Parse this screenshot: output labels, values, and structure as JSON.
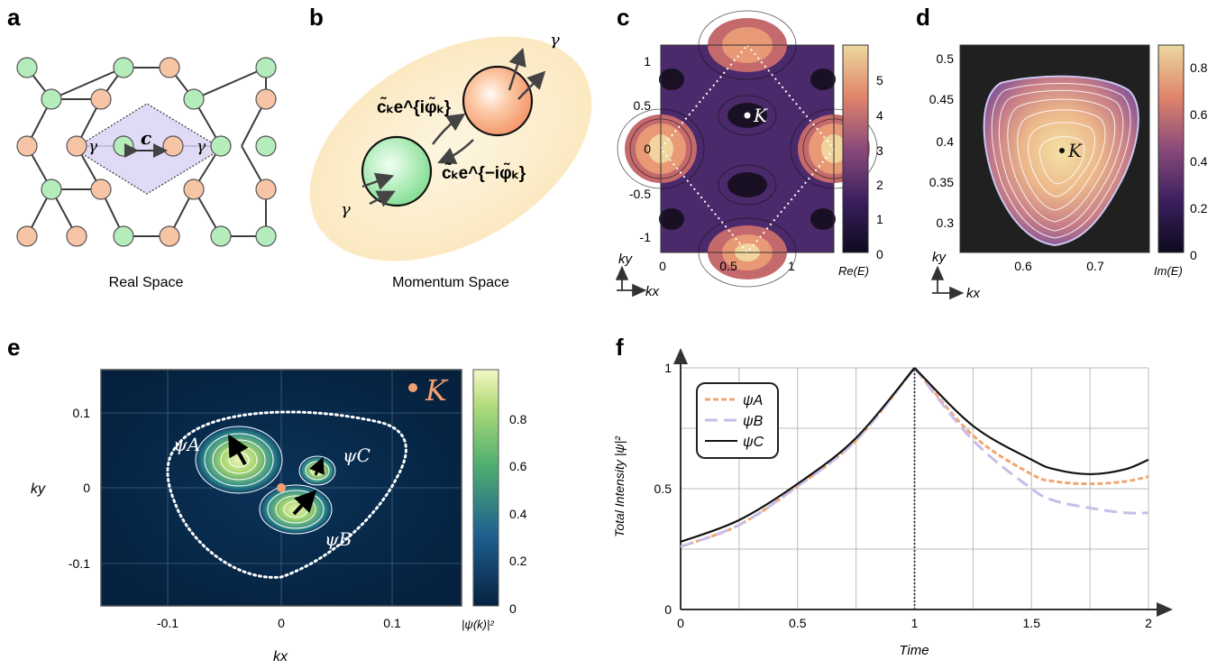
{
  "panels": {
    "a": {
      "letter": "a",
      "caption": "Real Space",
      "coupling_label": "c",
      "gamma_label": "γ"
    },
    "b": {
      "letter": "b",
      "caption": "Momentum Space",
      "gamma_label": "γ",
      "upper_label": "c̃ₖe^{iφ̃ₖ}",
      "lower_label": "c̃ₖe^{−iφ̃ₖ}"
    },
    "c": {
      "letter": "c",
      "point_label": "K",
      "colorbar_label": "Re(E)",
      "colorbar_ticks": [
        "0",
        "1",
        "2",
        "3",
        "4",
        "5"
      ],
      "colorbar_max": 5.8,
      "x_ticks": [
        "0",
        "0.5",
        "1"
      ],
      "y_ticks": [
        "1",
        "0.5",
        "0",
        "-0.5",
        "-1"
      ],
      "axis_x": "kx",
      "axis_y": "ky"
    },
    "d": {
      "letter": "d",
      "point_label": "K",
      "colorbar_label": "Im(E)",
      "colorbar_ticks": [
        "0",
        "0.2",
        "0.4",
        "0.6",
        "0.8"
      ],
      "colorbar_max": 0.98,
      "x_ticks": [
        "0.6",
        "0.7"
      ],
      "y_ticks": [
        "0.5",
        "0.45",
        "0.4",
        "0.35",
        "0.3"
      ],
      "axis_x": "kx",
      "axis_y": "ky"
    },
    "e": {
      "letter": "e",
      "point_label": "K",
      "colorbar_label": "|ψ(k)|²",
      "colorbar_ticks": [
        "0",
        "0.2",
        "0.4",
        "0.6",
        "0.8"
      ],
      "colorbar_max": 0.98,
      "x_ticks": [
        "-0.1",
        "0",
        "0.1"
      ],
      "y_ticks": [
        "0.1",
        "0",
        "-0.1"
      ],
      "xlabel": "kx",
      "ylabel": "ky",
      "packet_labels": [
        "ψA",
        "ψB",
        "ψC"
      ]
    },
    "f": {
      "letter": "f"
    }
  },
  "chart_data": {
    "type": "line",
    "xlabel": "Time",
    "ylabel": "Total Intensity |ψ|²",
    "xlim": [
      0,
      2
    ],
    "ylim": [
      0,
      1
    ],
    "x_ticks": [
      "0",
      "0.5",
      "1",
      "1.5",
      "2"
    ],
    "y_ticks": [
      "0",
      "0.5",
      "1"
    ],
    "grid": true,
    "legend_position": "top-left",
    "x": [
      0,
      0.25,
      0.5,
      0.75,
      1.0,
      1.25,
      1.5,
      1.6,
      1.75,
      1.9,
      2.0
    ],
    "series": [
      {
        "name": "ψA",
        "color": "#f0a673",
        "dash": "short",
        "values": [
          0.26,
          0.35,
          0.51,
          0.7,
          1.0,
          0.72,
          0.56,
          0.53,
          0.52,
          0.53,
          0.55
        ]
      },
      {
        "name": "ψB",
        "color": "#c9bde8",
        "dash": "long",
        "values": [
          0.26,
          0.35,
          0.51,
          0.7,
          1.0,
          0.7,
          0.5,
          0.45,
          0.42,
          0.4,
          0.4
        ]
      },
      {
        "name": "ψC",
        "color": "#111111",
        "dash": "solid",
        "values": [
          0.28,
          0.37,
          0.52,
          0.71,
          1.0,
          0.76,
          0.62,
          0.58,
          0.56,
          0.58,
          0.62
        ]
      }
    ]
  }
}
